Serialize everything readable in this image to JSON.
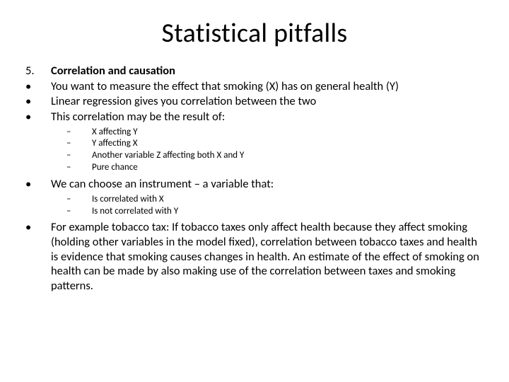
{
  "title": "Statistical pitfalls",
  "l1": {
    "num5": "5.",
    "heading": "Correlation and causation",
    "b1": "You want to measure the effect that smoking (X) has on general health (Y)",
    "b2": "Linear regression gives you correlation between the two",
    "b3": "This correlation may be the result of:",
    "b4": "We can choose an instrument – a variable that:",
    "b5": "For example tobacco tax: If tobacco taxes only affect health because they affect smoking (holding other variables in the model fixed), correlation between tobacco taxes and health is evidence that smoking causes changes in health. An estimate of the effect of smoking on health can be made by also making use of the correlation between taxes and smoking patterns."
  },
  "l2a": {
    "s1": "X affecting Y",
    "s2": "Y affecting X",
    "s3": "Another variable Z affecting both X and Y",
    "s4": "Pure chance"
  },
  "l2b": {
    "s1": "Is correlated with X",
    "s2": "Is not correlated with Y"
  },
  "style": {
    "background": "#ffffff",
    "text_color": "#000000",
    "title_fontsize": 38,
    "body_fontsize": 16.5,
    "sub_fontsize": 13,
    "font_family": "Calibri"
  }
}
